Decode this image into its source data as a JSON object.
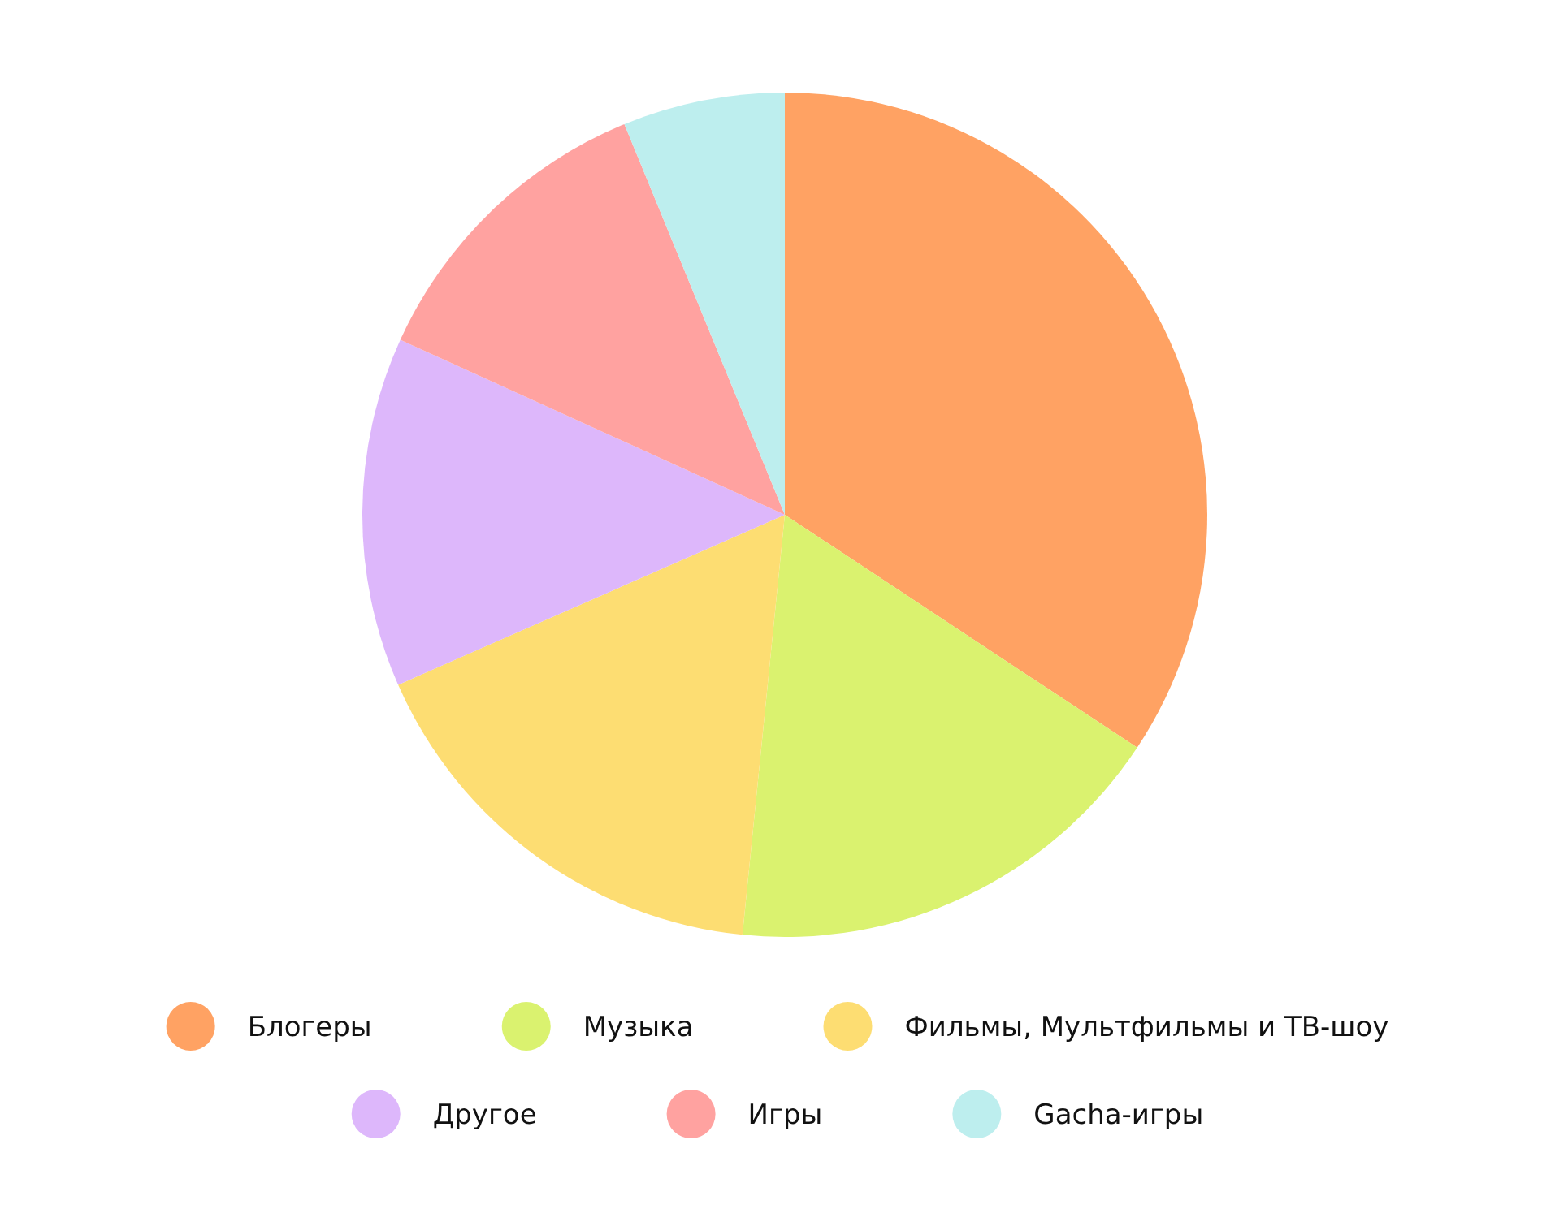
{
  "chart_data": {
    "type": "pie",
    "categories": [
      "Блогеры",
      "Музыка",
      "Фильмы, Мультфильмы и ТВ-шоу",
      "Другое",
      "Игры",
      "Gacha-игры"
    ],
    "values": [
      34.3,
      17.3,
      16.8,
      13.4,
      12.0,
      6.2
    ],
    "colors": [
      "#ffa263",
      "#daf26f",
      "#fddd72",
      "#ddb7fb",
      "#ffa2a0",
      "#bdeeee"
    ],
    "legend": "bottom"
  }
}
